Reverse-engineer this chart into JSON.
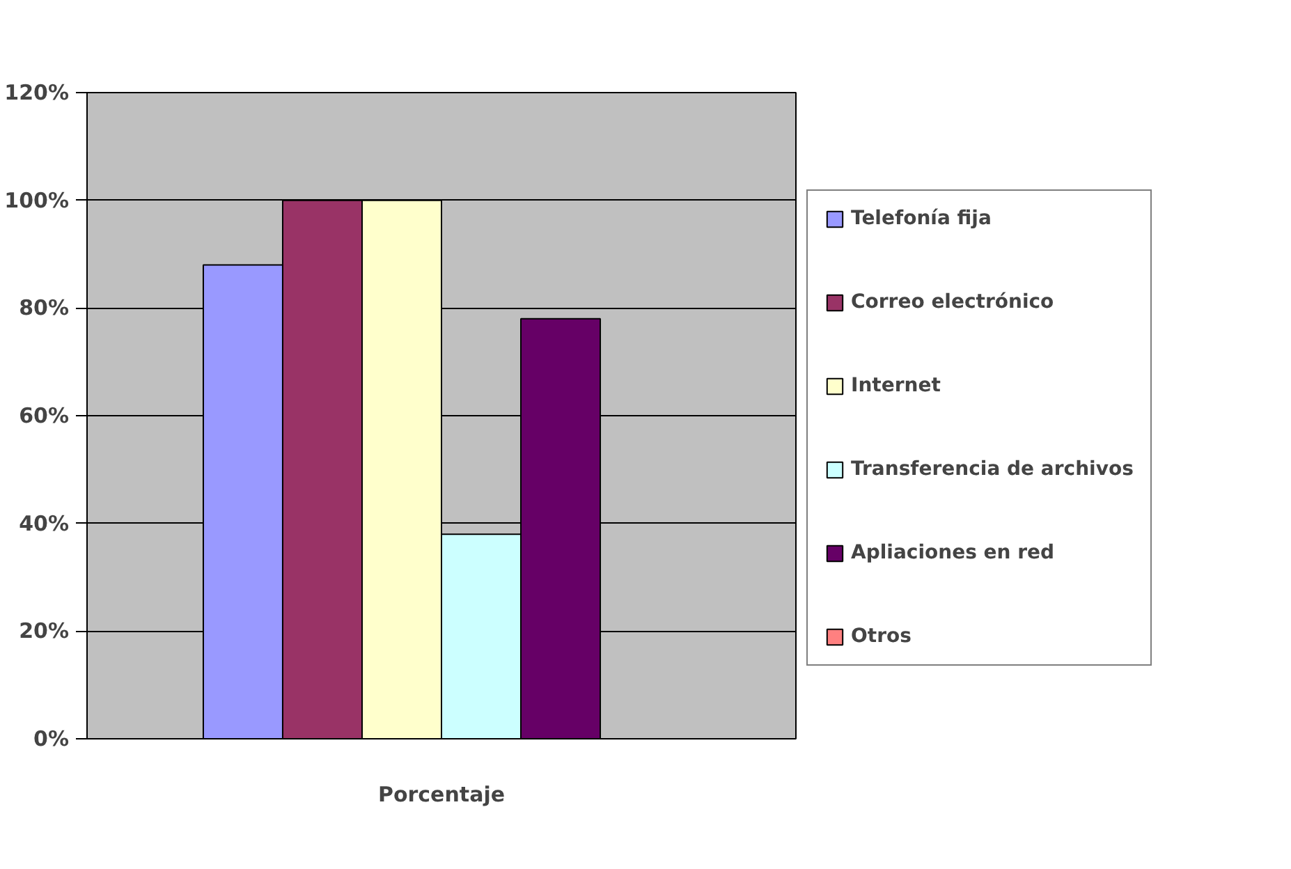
{
  "chart_data": {
    "type": "bar",
    "categories": [
      "Porcentaje"
    ],
    "series": [
      {
        "name": "Telefonía fija",
        "color": "#9999ff",
        "values": [
          88
        ]
      },
      {
        "name": "Correo electrónico",
        "color": "#993366",
        "values": [
          100
        ]
      },
      {
        "name": "Internet",
        "color": "#ffffcc",
        "values": [
          100
        ]
      },
      {
        "name": "Transferencia de archivos",
        "color": "#ccffff",
        "values": [
          38
        ]
      },
      {
        "name": "Apliaciones en red",
        "color": "#660066",
        "values": [
          78
        ]
      },
      {
        "name": "Otros",
        "color": "#ff8080",
        "values": [
          0
        ]
      }
    ],
    "ylim": [
      0,
      120
    ],
    "yticks": [
      {
        "value": 0,
        "label": "0%"
      },
      {
        "value": 20,
        "label": "20%"
      },
      {
        "value": 40,
        "label": "40%"
      },
      {
        "value": 60,
        "label": "60%"
      },
      {
        "value": 80,
        "label": "80%"
      },
      {
        "value": 100,
        "label": "100%"
      },
      {
        "value": 120,
        "label": "120%"
      }
    ],
    "grid": "y",
    "legend": "right"
  }
}
